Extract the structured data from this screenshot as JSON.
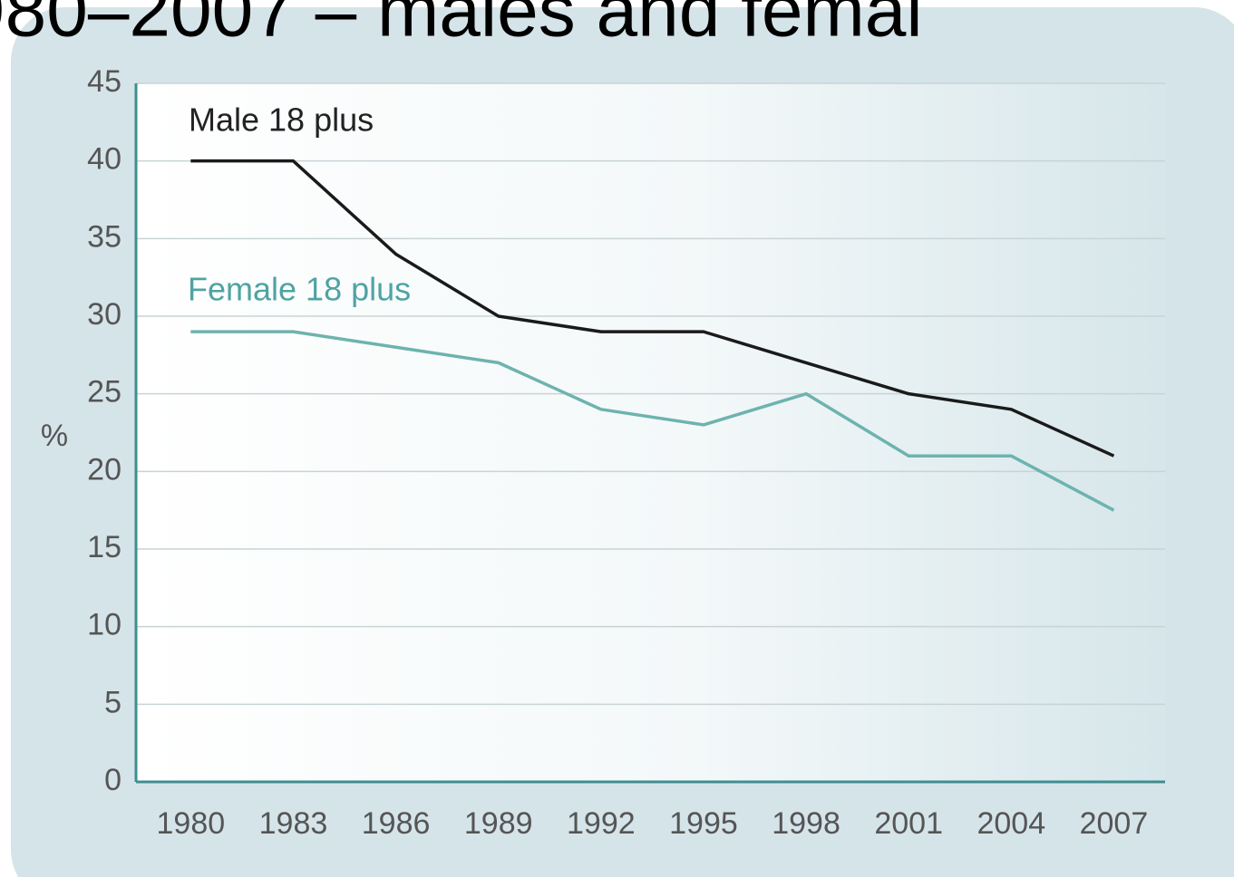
{
  "chart_data": {
    "type": "line",
    "title": "980–2007 – males and femal",
    "y_label": "%",
    "x": [
      1980,
      1983,
      1986,
      1989,
      1992,
      1995,
      1998,
      2001,
      2004,
      2007
    ],
    "series": [
      {
        "name": "Male 18 plus",
        "color": "#1a1a1a",
        "values": [
          40,
          40,
          34,
          30,
          29,
          29,
          27,
          25,
          24,
          21
        ]
      },
      {
        "name": "Female 18 plus",
        "color": "#6db3ae",
        "values": [
          29,
          29,
          28,
          27,
          24,
          23,
          25,
          21,
          21,
          17.5
        ]
      }
    ],
    "xlim": [
      1978.4,
      2008.5
    ],
    "xticks": [
      1980,
      1983,
      1986,
      1989,
      1992,
      1995,
      1998,
      2001,
      2004,
      2007
    ],
    "ylim": [
      0,
      45
    ],
    "yticks": [
      0,
      5,
      10,
      15,
      20,
      25,
      30,
      35,
      40,
      45
    ],
    "grid": true
  }
}
